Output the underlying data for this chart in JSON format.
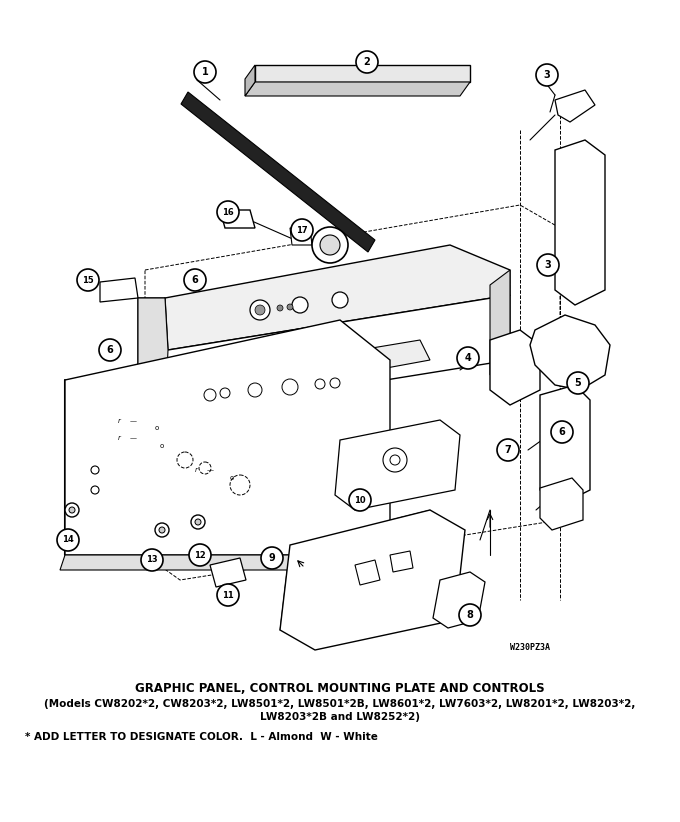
{
  "title": "GRAPHIC PANEL, CONTROL MOUNTING PLATE AND CONTROLS",
  "subtitle_line1": "(Models CW8202*2, CW8203*2, LW8501*2, LW8501*2B, LW8601*2, LW7603*2, LW8201*2, LW8203*2,",
  "subtitle_line2": "LW8203*2B and LW8252*2)",
  "footnote": "* ADD LETTER TO DESIGNATE COLOR.  L - Almond  W - White",
  "watermark": "W230PZ3A",
  "bg_color": "#ffffff",
  "title_fontsize": 8.5,
  "subtitle_fontsize": 7.5,
  "footnote_fontsize": 7.5,
  "part_labels": [
    "1",
    "2",
    "3",
    "3",
    "4",
    "5",
    "6",
    "6",
    "6",
    "7",
    "8",
    "9",
    "10",
    "11",
    "12",
    "13",
    "14",
    "15",
    "16",
    "17"
  ],
  "line_color": "#000000"
}
